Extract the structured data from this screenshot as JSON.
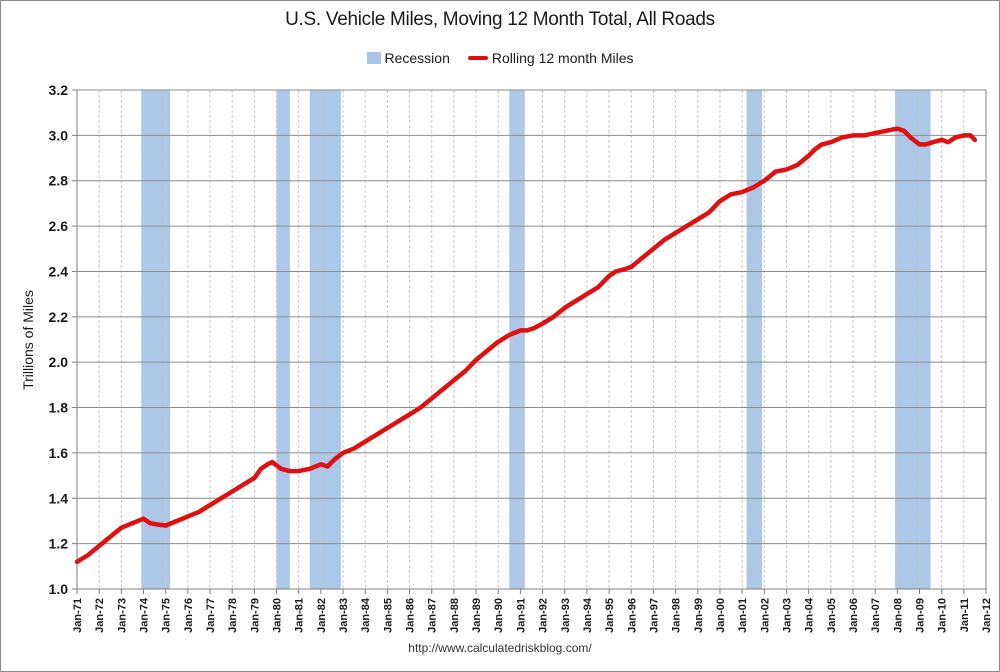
{
  "chart_data": {
    "type": "line",
    "title": "U.S. Vehicle Miles, Moving 12 Month Total, All Roads",
    "xlabel": "",
    "ylabel": "Trillions of Miles",
    "ylim": [
      1.0,
      3.2
    ],
    "yticks": [
      "1.0",
      "1.2",
      "1.4",
      "1.6",
      "1.8",
      "2.0",
      "2.2",
      "2.4",
      "2.6",
      "2.8",
      "3.0",
      "3.2"
    ],
    "xlim": [
      1971.0,
      2012.0
    ],
    "xticks": [
      "Jan-71",
      "Jan-72",
      "Jan-73",
      "Jan-74",
      "Jan-75",
      "Jan-76",
      "Jan-77",
      "Jan-78",
      "Jan-79",
      "Jan-80",
      "Jan-81",
      "Jan-82",
      "Jan-83",
      "Jan-84",
      "Jan-85",
      "Jan-86",
      "Jan-87",
      "Jan-88",
      "Jan-89",
      "Jan-90",
      "Jan-91",
      "Jan-92",
      "Jan-93",
      "Jan-94",
      "Jan-95",
      "Jan-96",
      "Jan-97",
      "Jan-98",
      "Jan-99",
      "Jan-00",
      "Jan-01",
      "Jan-02",
      "Jan-03",
      "Jan-04",
      "Jan-05",
      "Jan-06",
      "Jan-07",
      "Jan-08",
      "Jan-09",
      "Jan-10",
      "Jan-11",
      "Jan-12"
    ],
    "grid": true,
    "legend_position": "top-center",
    "legend": [
      "Recession",
      "Rolling 12 month Miles"
    ],
    "colors": {
      "line": "#e01010",
      "recession": "#a9c4e8",
      "grid_major": "#8c8c8c",
      "grid_minor": "#c8c8c8"
    },
    "recessions": [
      {
        "start": 1973.9,
        "end": 1975.2
      },
      {
        "start": 1980.0,
        "end": 1980.6
      },
      {
        "start": 1981.5,
        "end": 1982.9
      },
      {
        "start": 1990.5,
        "end": 1991.2
      },
      {
        "start": 2001.2,
        "end": 2001.9
      },
      {
        "start": 2007.9,
        "end": 2009.5
      }
    ],
    "series": [
      {
        "name": "Rolling 12 month Miles",
        "x": [
          1971.0,
          1971.5,
          1972.0,
          1972.5,
          1973.0,
          1973.5,
          1974.0,
          1974.3,
          1974.6,
          1975.0,
          1975.5,
          1976.0,
          1976.5,
          1977.0,
          1977.5,
          1978.0,
          1978.5,
          1979.0,
          1979.3,
          1979.6,
          1979.8,
          1980.2,
          1980.6,
          1981.0,
          1981.5,
          1982.0,
          1982.3,
          1982.6,
          1983.0,
          1983.5,
          1984.0,
          1984.5,
          1985.0,
          1985.5,
          1986.0,
          1986.5,
          1987.0,
          1987.5,
          1988.0,
          1988.5,
          1989.0,
          1989.5,
          1990.0,
          1990.5,
          1991.0,
          1991.3,
          1991.6,
          1992.0,
          1992.5,
          1993.0,
          1993.5,
          1994.0,
          1994.5,
          1995.0,
          1995.3,
          1995.7,
          1996.0,
          1996.5,
          1997.0,
          1997.5,
          1998.0,
          1998.5,
          1999.0,
          1999.5,
          2000.0,
          2000.5,
          2001.0,
          2001.5,
          2002.0,
          2002.5,
          2003.0,
          2003.5,
          2004.0,
          2004.3,
          2004.6,
          2005.0,
          2005.5,
          2006.0,
          2006.5,
          2007.0,
          2007.5,
          2008.0,
          2008.3,
          2008.6,
          2009.0,
          2009.3,
          2009.6,
          2010.0,
          2010.3,
          2010.6,
          2011.0,
          2011.3,
          2011.5
        ],
        "values": [
          1.12,
          1.15,
          1.19,
          1.23,
          1.27,
          1.29,
          1.31,
          1.29,
          1.285,
          1.28,
          1.3,
          1.32,
          1.34,
          1.37,
          1.4,
          1.43,
          1.46,
          1.49,
          1.53,
          1.55,
          1.56,
          1.53,
          1.52,
          1.52,
          1.53,
          1.55,
          1.54,
          1.57,
          1.6,
          1.62,
          1.65,
          1.68,
          1.71,
          1.74,
          1.77,
          1.8,
          1.84,
          1.88,
          1.92,
          1.96,
          2.01,
          2.05,
          2.09,
          2.12,
          2.14,
          2.14,
          2.15,
          2.17,
          2.2,
          2.24,
          2.27,
          2.3,
          2.33,
          2.38,
          2.4,
          2.41,
          2.42,
          2.46,
          2.5,
          2.54,
          2.57,
          2.6,
          2.63,
          2.66,
          2.71,
          2.74,
          2.75,
          2.77,
          2.8,
          2.84,
          2.85,
          2.87,
          2.91,
          2.94,
          2.96,
          2.97,
          2.99,
          3.0,
          3.0,
          3.01,
          3.02,
          3.03,
          3.02,
          2.99,
          2.96,
          2.96,
          2.97,
          2.98,
          2.97,
          2.99,
          3.0,
          3.0,
          2.98
        ]
      }
    ]
  },
  "source_url": "http://www.calculatedriskblog.com/"
}
